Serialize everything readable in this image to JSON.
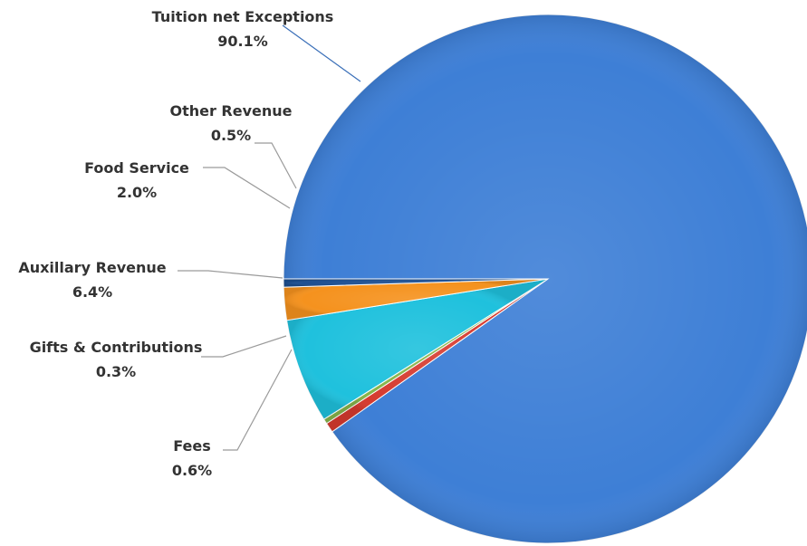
{
  "chart_data": {
    "type": "pie",
    "title": "",
    "slices": [
      {
        "label": "Tuition net Exceptions",
        "value": 90.1,
        "value_label": "90.1%",
        "color": "#3E7FD6"
      },
      {
        "label": "Fees",
        "value": 0.6,
        "value_label": "0.6%",
        "color": "#D63A2E"
      },
      {
        "label": "Gifts & Contributions",
        "value": 0.3,
        "value_label": "0.3%",
        "color": "#86B54A"
      },
      {
        "label": "Auxillary Revenue",
        "value": 6.4,
        "value_label": "6.4%",
        "color": "#1FC1DD"
      },
      {
        "label": "Food Service",
        "value": 2.0,
        "value_label": "2.0%",
        "color": "#F5921E"
      },
      {
        "label": "Other Revenue",
        "value": 0.5,
        "value_label": "0.5%",
        "color": "#1D4F91"
      }
    ],
    "label_color": "#333333",
    "leader_line_color": "#9a9a9a"
  }
}
